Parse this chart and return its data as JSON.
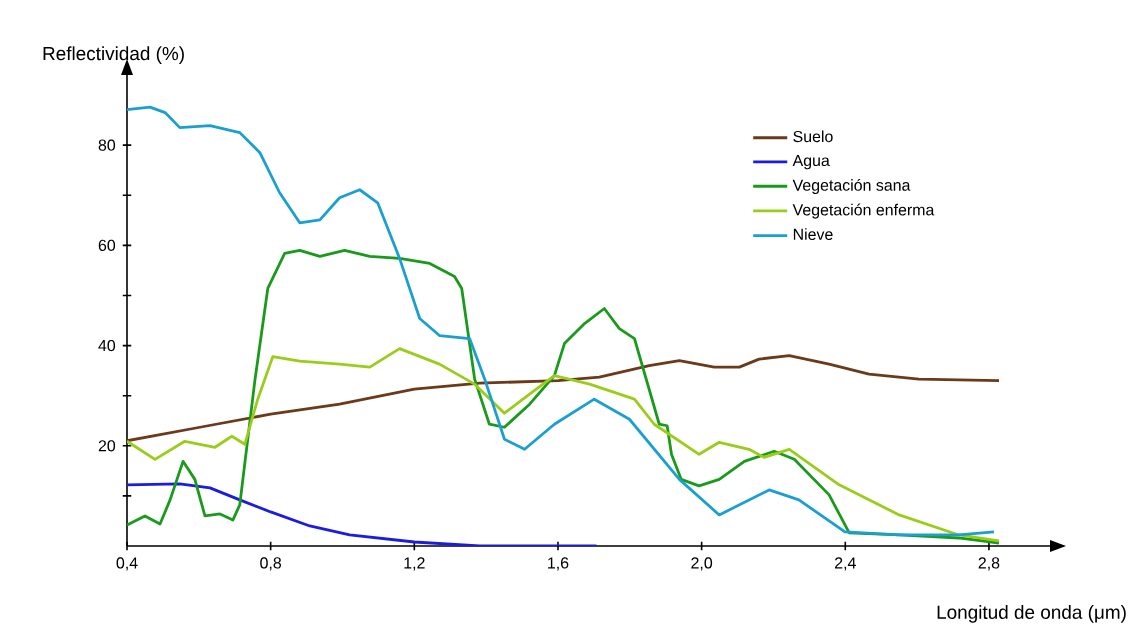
{
  "chart_data": {
    "type": "line",
    "xlabel": "Longitud de onda (μm)",
    "ylabel": "Reflectividad (%)",
    "xlim": [
      0.4,
      2.97
    ],
    "ylim": [
      0,
      94
    ],
    "xticks": [
      {
        "value": 0.4,
        "label": "0,4"
      },
      {
        "value": 0.8,
        "label": "0,8"
      },
      {
        "value": 1.2,
        "label": "1,2"
      },
      {
        "value": 1.6,
        "label": "1,6"
      },
      {
        "value": 2.0,
        "label": "2,0"
      },
      {
        "value": 2.4,
        "label": "2,4"
      },
      {
        "value": 2.8,
        "label": "2,8"
      }
    ],
    "yticks": [
      {
        "value": 10,
        "label": null
      },
      20,
      {
        "value": 30,
        "label": null
      },
      40,
      {
        "value": 50,
        "label": null
      },
      60,
      {
        "value": 70,
        "label": null
      },
      80
    ],
    "legend": "top right",
    "grid": false,
    "marker": "none",
    "line_style": "solid",
    "series": [
      {
        "name": "Suelo",
        "color": "#6b3a1a",
        "x": [
          0.4,
          0.603,
          0.8,
          0.992,
          1.2,
          1.382,
          1.6,
          1.715,
          1.854,
          1.938,
          2.035,
          2.105,
          2.16,
          2.244,
          2.355,
          2.466,
          2.605,
          2.828
        ],
        "values": [
          21,
          23.7,
          26.3,
          28.3,
          31.3,
          32.5,
          33,
          33.7,
          36,
          37,
          35.7,
          35.7,
          37.3,
          38,
          36.3,
          34.3,
          33.3,
          33
        ]
      },
      {
        "name": "Agua",
        "color": "#1c1ce0",
        "x": [
          0.4,
          0.547,
          0.631,
          0.714,
          0.8,
          0.909,
          1.02,
          1.2,
          1.382,
          1.707
        ],
        "values": [
          12.2,
          12.4,
          11.6,
          9.2,
          6.8,
          4,
          2.2,
          0.8,
          0,
          0
        ]
      },
      {
        "name": "Vegetación sana",
        "color": "#1a9a1a",
        "x": [
          0.4,
          0.45,
          0.492,
          0.52,
          0.556,
          0.589,
          0.617,
          0.659,
          0.695,
          0.714,
          0.756,
          0.792,
          0.839,
          0.881,
          0.937,
          1.006,
          1.076,
          1.159,
          1.243,
          1.312,
          1.332,
          1.368,
          1.409,
          1.451,
          1.521,
          1.59,
          1.618,
          1.674,
          1.729,
          1.771,
          1.813,
          1.882,
          1.904,
          1.916,
          1.943,
          1.993,
          2.049,
          2.119,
          2.202,
          2.258,
          2.355,
          2.411,
          2.55,
          2.716,
          2.828
        ],
        "values": [
          4.2,
          6,
          4.4,
          9.2,
          16.9,
          13.3,
          6,
          6.4,
          5.2,
          8.2,
          33,
          51.4,
          58.4,
          59,
          57.8,
          59,
          57.8,
          57.4,
          56.4,
          53.8,
          51.4,
          33.3,
          24.3,
          23.7,
          28.3,
          34,
          40.4,
          44.4,
          47.4,
          43.4,
          41.4,
          24.3,
          24,
          18.3,
          13.3,
          12,
          13.3,
          16.9,
          18.9,
          17.3,
          10.2,
          2.6,
          2.2,
          1.6,
          0.6
        ]
      },
      {
        "name": "Vegetación enferma",
        "color": "#9acd1a",
        "x": [
          0.4,
          0.478,
          0.561,
          0.645,
          0.692,
          0.728,
          0.764,
          0.806,
          0.881,
          0.992,
          1.076,
          1.159,
          1.27,
          1.368,
          1.451,
          1.521,
          1.59,
          1.688,
          1.813,
          1.868,
          1.993,
          2.049,
          2.132,
          2.174,
          2.244,
          2.383,
          2.55,
          2.716,
          2.828
        ],
        "values": [
          20.9,
          17.3,
          20.9,
          19.7,
          21.9,
          20.3,
          29.3,
          37.8,
          36.9,
          36.3,
          35.7,
          39.4,
          36.3,
          32.3,
          26.5,
          30.3,
          34,
          32.3,
          29.3,
          24.3,
          18.3,
          20.7,
          19.3,
          17.7,
          19.3,
          12.2,
          6.2,
          2.2,
          1
        ]
      },
      {
        "name": "Nieve",
        "color": "#1aa0d0",
        "x": [
          0.4,
          0.464,
          0.506,
          0.547,
          0.631,
          0.714,
          0.77,
          0.825,
          0.881,
          0.937,
          0.992,
          1.048,
          1.098,
          1.159,
          1.215,
          1.27,
          1.354,
          1.396,
          1.451,
          1.507,
          1.59,
          1.701,
          1.799,
          1.938,
          2.049,
          2.188,
          2.271,
          2.399,
          2.55,
          2.716,
          2.814
        ],
        "values": [
          87.1,
          87.6,
          86.5,
          83.5,
          83.9,
          82.5,
          78.5,
          70.5,
          64.5,
          65.1,
          69.5,
          71.1,
          68.5,
          57.4,
          45.4,
          42,
          41.4,
          33.3,
          21.3,
          19.3,
          24.3,
          29.3,
          25.3,
          13.3,
          6.2,
          11.2,
          9.2,
          2.8,
          2.2,
          2.2,
          2.8
        ]
      }
    ]
  }
}
